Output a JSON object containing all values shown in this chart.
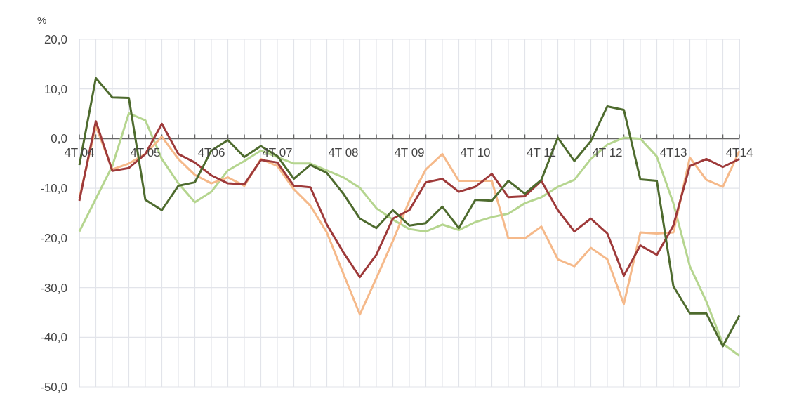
{
  "chart_data": {
    "type": "line",
    "ylabel": "%",
    "categories": [
      "4T 04",
      null,
      null,
      null,
      "4T 05",
      null,
      null,
      null,
      "4T06",
      null,
      null,
      null,
      "4T 07",
      null,
      null,
      null,
      "4T 08",
      null,
      null,
      null,
      "4T 09",
      null,
      null,
      null,
      "4T 10",
      null,
      null,
      null,
      "4T 11",
      null,
      null,
      null,
      "4T 12",
      null,
      null,
      null,
      "4T13",
      null,
      null,
      null,
      "4T14"
    ],
    "series": [
      {
        "color": "#b5d58f",
        "values": [
          -18.7,
          -12.1,
          -5.5,
          5.1,
          3.7,
          -4.1,
          -9.0,
          -12.8,
          -10.7,
          -6.4,
          -4.5,
          -2.4,
          -3.7,
          -5.0,
          -5.0,
          -6.4,
          -7.8,
          -9.9,
          -14.0,
          -16.3,
          -18.2,
          -18.7,
          -17.3,
          -18.4,
          -16.8,
          -15.8,
          -15.1,
          -13.0,
          -11.8,
          -9.7,
          -8.3,
          -4.1,
          -1.2,
          0.2,
          0.0,
          -3.6,
          -13.0,
          -25.7,
          -32.8,
          -41.3,
          -43.7
        ]
      },
      {
        "color": "#f5b98a",
        "values": [
          -12.0,
          2.5,
          -6.2,
          -5.0,
          -3.1,
          0.4,
          -4.1,
          -7.3,
          -9.0,
          -7.8,
          -9.5,
          -4.1,
          -5.5,
          -10.2,
          -13.5,
          -18.9,
          -27.2,
          -35.4,
          -28.1,
          -20.6,
          -12.5,
          -6.2,
          -3.1,
          -8.5,
          -8.5,
          -8.5,
          -20.1,
          -20.1,
          -17.7,
          -24.3,
          -25.7,
          -22.0,
          -24.3,
          -33.3,
          -18.9,
          -19.1,
          -18.9,
          -3.8,
          -8.3,
          -9.7,
          -2.5
        ]
      },
      {
        "color": "#9e3a3a",
        "values": [
          -12.5,
          3.5,
          -6.5,
          -5.9,
          -3.1,
          3.0,
          -3.1,
          -4.8,
          -7.4,
          -9.0,
          -9.2,
          -4.3,
          -4.8,
          -9.5,
          -9.8,
          -17.3,
          -22.9,
          -27.9,
          -23.4,
          -16.1,
          -14.4,
          -8.8,
          -8.1,
          -10.7,
          -9.7,
          -7.1,
          -11.8,
          -11.6,
          -8.5,
          -14.4,
          -18.7,
          -16.1,
          -19.1,
          -27.6,
          -21.5,
          -23.4,
          -17.5,
          -5.5,
          -4.1,
          -5.7,
          -4.1
        ]
      },
      {
        "color": "#4e6b2e",
        "values": [
          -5.3,
          12.2,
          8.3,
          8.2,
          -12.3,
          -14.4,
          -9.5,
          -8.8,
          -2.4,
          -0.3,
          -3.7,
          -1.5,
          -3.5,
          -8.1,
          -5.3,
          -6.9,
          -11.1,
          -16.1,
          -18.0,
          -14.4,
          -17.5,
          -17.0,
          -13.7,
          -18.0,
          -12.3,
          -12.5,
          -8.5,
          -11.1,
          -8.3,
          0.2,
          -4.5,
          -0.5,
          6.5,
          5.8,
          -8.2,
          -8.5,
          -29.7,
          -35.2,
          -35.2,
          -41.8,
          -35.6
        ]
      }
    ],
    "ylim": [
      -50,
      20
    ],
    "yticks": [
      {
        "value": -50,
        "label": "-50,0"
      },
      {
        "value": -40,
        "label": "-40,0"
      },
      {
        "value": -30,
        "label": "-30,0"
      },
      {
        "value": -20,
        "label": "-20,0"
      },
      {
        "value": -10,
        "label": "-10,0"
      },
      {
        "value": 0,
        "label": "0,0"
      },
      {
        "value": 10,
        "label": "10,0"
      },
      {
        "value": 20,
        "label": "20,0"
      }
    ],
    "grid": true
  }
}
